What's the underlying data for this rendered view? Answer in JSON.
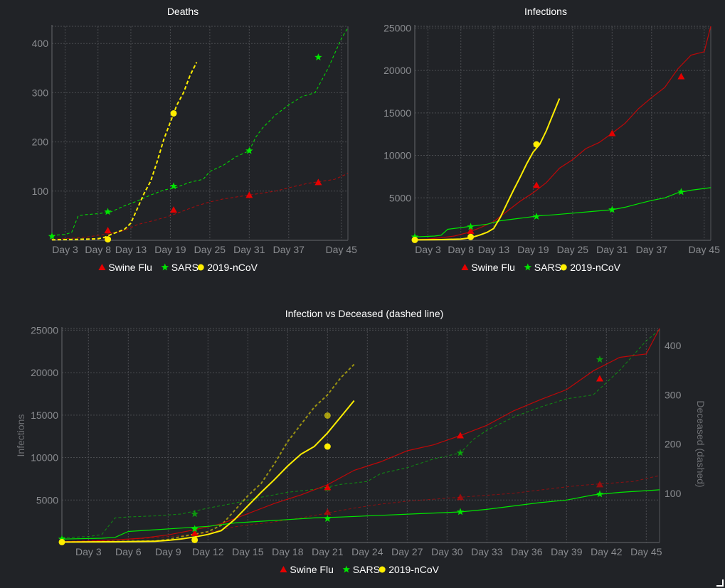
{
  "colors": {
    "swine": "#e60000",
    "sars": "#00e600",
    "ncov": "#ffee00",
    "background": "#212327"
  },
  "chart_data": [
    {
      "type": "line",
      "title": "Deaths",
      "x_ticks": [
        "Day 3",
        "Day 8",
        "Day 13",
        "Day 19",
        "Day 25",
        "Day 31",
        "Day 37",
        "Day 45"
      ],
      "y_ticks": [
        "100",
        "200",
        "300",
        "400"
      ],
      "xlim": [
        1,
        46
      ],
      "ylim": [
        0,
        435
      ],
      "grid": true,
      "legend_position": "bottom",
      "line_style": "dashed",
      "series": [
        {
          "name": "Swine Flu",
          "marker": "triangle",
          "x": [
            1,
            4,
            6,
            8,
            10,
            12,
            14,
            17,
            19,
            21,
            23,
            25,
            27,
            29,
            31,
            33,
            35,
            38,
            40,
            42,
            44,
            46
          ],
          "y": [
            2,
            4,
            6,
            10,
            14,
            20,
            32,
            42,
            50,
            60,
            70,
            78,
            84,
            88,
            92,
            96,
            100,
            110,
            116,
            120,
            124,
            136
          ]
        },
        {
          "name": "SARS",
          "marker": "star",
          "x": [
            1,
            3,
            4,
            5,
            6,
            8,
            10,
            12,
            14,
            16,
            18,
            20,
            22,
            24,
            25,
            27,
            29,
            31,
            32,
            33,
            35,
            37,
            39,
            41,
            43,
            44,
            45,
            46
          ],
          "y": [
            10,
            12,
            16,
            50,
            52,
            54,
            58,
            70,
            80,
            92,
            102,
            108,
            118,
            124,
            140,
            152,
            170,
            182,
            210,
            228,
            255,
            275,
            292,
            300,
            350,
            380,
            410,
            432
          ]
        },
        {
          "name": "2019-nCoV",
          "marker": "circle",
          "x": [
            1,
            5,
            8,
            9,
            10,
            11,
            12,
            13,
            14,
            15,
            16,
            17,
            18,
            19,
            20,
            21,
            22,
            23
          ],
          "y": [
            1,
            2,
            3,
            6,
            12,
            17,
            22,
            35,
            65,
            95,
            120,
            160,
            205,
            240,
            275,
            300,
            335,
            362
          ]
        }
      ],
      "markers": [
        {
          "series": "Swine Flu",
          "x": [
            9.5,
            19.5,
            31,
            41.5
          ],
          "y": [
            20,
            62,
            92,
            118
          ]
        },
        {
          "series": "SARS",
          "x": [
            1,
            9.5,
            19.5,
            31,
            41.5
          ],
          "y": [
            8,
            58,
            110,
            182,
            372
          ]
        },
        {
          "series": "2019-nCoV",
          "x": [
            9.5,
            19.5
          ],
          "y": [
            2,
            258
          ]
        }
      ]
    },
    {
      "type": "line",
      "title": "Infections",
      "x_ticks": [
        "Day 3",
        "Day 8",
        "Day 13",
        "Day 19",
        "Day 25",
        "Day 31",
        "Day 37",
        "Day 45"
      ],
      "y_ticks": [
        "5000",
        "10000",
        "15000",
        "20000",
        "25000"
      ],
      "xlim": [
        1,
        46
      ],
      "ylim": [
        0,
        25200
      ],
      "grid": true,
      "legend_position": "bottom",
      "line_style": "solid",
      "series": [
        {
          "name": "Swine Flu",
          "marker": "triangle",
          "x": [
            1,
            3,
            5,
            7,
            9,
            11,
            13,
            15,
            17,
            19,
            21,
            23,
            25,
            27,
            29,
            31,
            33,
            35,
            37,
            39,
            41,
            43,
            45,
            46
          ],
          "y": [
            100,
            150,
            300,
            500,
            900,
            1500,
            2200,
            3400,
            4600,
            5600,
            6800,
            8500,
            9500,
            10800,
            11500,
            12600,
            13800,
            15500,
            16800,
            18000,
            20200,
            21800,
            22200,
            25200
          ]
        },
        {
          "name": "SARS",
          "marker": "star",
          "x": [
            1,
            4,
            5,
            6,
            8,
            10,
            12,
            14,
            16,
            18,
            20,
            22,
            25,
            28,
            31,
            33,
            35,
            37,
            39,
            41,
            43,
            45,
            46
          ],
          "y": [
            400,
            500,
            600,
            1300,
            1500,
            1700,
            1900,
            2300,
            2500,
            2700,
            2900,
            3000,
            3200,
            3400,
            3600,
            3900,
            4300,
            4700,
            5000,
            5600,
            5900,
            6100,
            6200
          ]
        },
        {
          "name": "2019-nCoV",
          "marker": "circle",
          "x": [
            1,
            5,
            8,
            9,
            10,
            11,
            12,
            13,
            14,
            15,
            16,
            17,
            18,
            19,
            20,
            21,
            22,
            23
          ],
          "y": [
            50,
            80,
            150,
            250,
            420,
            650,
            950,
            1400,
            2700,
            4300,
            5900,
            7400,
            9000,
            10400,
            11300,
            12900,
            14800,
            16700
          ]
        }
      ],
      "markers": [
        {
          "series": "Swine Flu",
          "x": [
            9.5,
            19.5,
            31,
            41.5
          ],
          "y": [
            1100,
            6500,
            12600,
            19300
          ]
        },
        {
          "series": "SARS",
          "x": [
            1,
            9.5,
            19.5,
            31,
            41.5
          ],
          "y": [
            400,
            1600,
            2800,
            3600,
            5700
          ]
        },
        {
          "series": "2019-nCoV",
          "x": [
            1,
            9.5,
            19.5
          ],
          "y": [
            50,
            400,
            11300
          ]
        }
      ]
    },
    {
      "type": "line",
      "title": "Infection vs Deceased (dashed line)",
      "ylabel": "Infections",
      "y2label": "Deceased (dashed)",
      "x_ticks": [
        "Day 3",
        "Day 6",
        "Day 9",
        "Day 12",
        "Day 15",
        "Day 18",
        "Day 21",
        "Day 24",
        "Day 27",
        "Day 30",
        "Day 33",
        "Day 36",
        "Day 39",
        "Day 42",
        "Day 45"
      ],
      "y_ticks": [
        "5000",
        "10000",
        "15000",
        "20000",
        "25000"
      ],
      "y2_ticks": [
        "100",
        "200",
        "300",
        "400"
      ],
      "xlim": [
        1,
        46
      ],
      "ylim": [
        0,
        25200
      ],
      "y2lim": [
        0,
        435
      ],
      "grid": true,
      "legend_position": "bottom",
      "series_solid": "infections",
      "series_dashed": "deaths",
      "markers_solid": [
        {
          "series": "Swine Flu",
          "x": [
            11,
            21,
            31,
            41.5
          ],
          "y": [
            1100,
            6500,
            12600,
            19300
          ]
        },
        {
          "series": "SARS",
          "x": [
            1,
            11,
            21,
            31,
            41.5
          ],
          "y": [
            400,
            1600,
            2800,
            3600,
            5700
          ]
        },
        {
          "series": "2019-nCoV",
          "x": [
            1,
            11,
            21
          ],
          "y": [
            50,
            300,
            11300
          ]
        }
      ],
      "markers_dashed": [
        {
          "series": "Swine Flu",
          "x": [
            21,
            31,
            41.5
          ],
          "y": [
            62,
            92,
            118
          ]
        },
        {
          "series": "SARS",
          "x": [
            11,
            21,
            31,
            41.5
          ],
          "y": [
            58,
            110,
            182,
            372
          ]
        },
        {
          "series": "2019-nCoV",
          "x": [
            21
          ],
          "y": [
            258
          ]
        }
      ]
    }
  ],
  "legend": [
    {
      "label": "Swine Flu",
      "marker": "triangle"
    },
    {
      "label": "SARS",
      "marker": "star"
    },
    {
      "label": "2019-nCoV",
      "marker": "circle"
    }
  ]
}
